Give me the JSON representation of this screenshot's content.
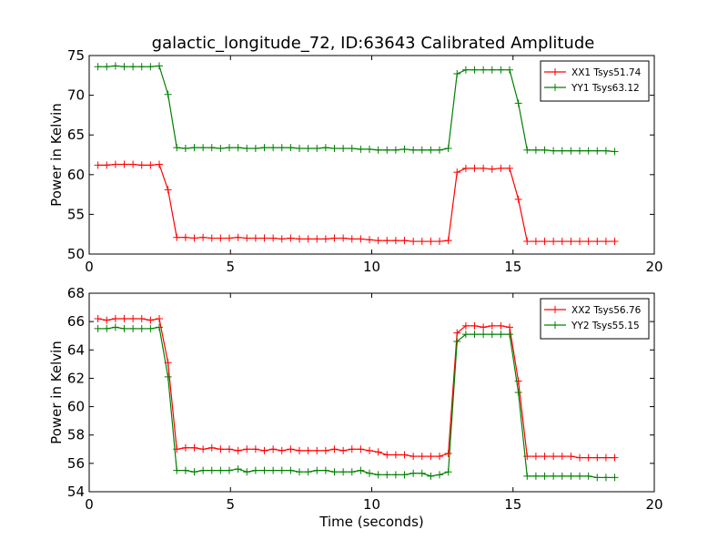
{
  "figure": {
    "title": "galactic_longitude_72, ID:63643 Calibrated Amplitude"
  },
  "chart_data": [
    {
      "type": "line",
      "title": "galactic_longitude_72, ID:63643 Calibrated Amplitude",
      "xlabel": "",
      "ylabel": "Power in Kelvin",
      "xlim": [
        0,
        20
      ],
      "ylim": [
        50,
        75
      ],
      "xticks": [
        0,
        5,
        10,
        15,
        20
      ],
      "yticks": [
        50,
        55,
        60,
        65,
        70,
        75
      ],
      "grid": false,
      "legend_position": "top-right",
      "x": [
        0.31,
        0.62,
        0.93,
        1.24,
        1.55,
        1.86,
        2.17,
        2.48,
        2.79,
        3.1,
        3.41,
        3.72,
        4.03,
        4.34,
        4.65,
        4.96,
        5.27,
        5.58,
        5.89,
        6.2,
        6.51,
        6.82,
        7.13,
        7.44,
        7.75,
        8.06,
        8.37,
        8.68,
        8.99,
        9.3,
        9.61,
        9.92,
        10.23,
        10.54,
        10.85,
        11.16,
        11.47,
        11.78,
        12.09,
        12.4,
        12.71,
        13.02,
        13.33,
        13.64,
        13.95,
        14.26,
        14.57,
        14.88,
        15.19,
        15.5,
        15.81,
        16.12,
        16.43,
        16.74,
        17.05,
        17.36,
        17.67,
        17.98,
        18.29,
        18.6
      ],
      "series": [
        {
          "name": "XX1 Tsys51.74",
          "color": "#ff0000",
          "values": [
            61.2,
            61.2,
            61.3,
            61.3,
            61.3,
            61.2,
            61.2,
            61.3,
            58.1,
            52.1,
            52.1,
            52.0,
            52.1,
            52.0,
            52.0,
            52.0,
            52.1,
            52.0,
            52.0,
            52.0,
            52.0,
            51.9,
            52.0,
            51.9,
            51.9,
            51.9,
            51.9,
            52.0,
            52.0,
            51.9,
            51.9,
            51.8,
            51.7,
            51.7,
            51.7,
            51.7,
            51.6,
            51.6,
            51.6,
            51.6,
            51.7,
            60.3,
            60.8,
            60.8,
            60.8,
            60.7,
            60.8,
            60.8,
            56.9,
            51.6,
            51.6,
            51.6,
            51.6,
            51.6,
            51.6,
            51.6,
            51.6,
            51.6,
            51.6,
            51.6
          ]
        },
        {
          "name": "YY1 Tsys63.12",
          "color": "#008000",
          "values": [
            73.6,
            73.6,
            73.7,
            73.6,
            73.6,
            73.6,
            73.6,
            73.7,
            70.1,
            63.4,
            63.3,
            63.4,
            63.4,
            63.4,
            63.3,
            63.4,
            63.4,
            63.3,
            63.3,
            63.4,
            63.4,
            63.4,
            63.4,
            63.3,
            63.3,
            63.3,
            63.4,
            63.3,
            63.3,
            63.3,
            63.2,
            63.2,
            63.1,
            63.1,
            63.1,
            63.2,
            63.1,
            63.1,
            63.1,
            63.1,
            63.3,
            72.7,
            73.2,
            73.2,
            73.2,
            73.2,
            73.2,
            73.2,
            69.0,
            63.1,
            63.1,
            63.1,
            63.0,
            63.0,
            63.0,
            63.0,
            63.0,
            63.0,
            63.0,
            62.9
          ]
        }
      ]
    },
    {
      "type": "line",
      "title": "",
      "xlabel": "Time (seconds)",
      "ylabel": "Power in Kelvin",
      "xlim": [
        0,
        20
      ],
      "ylim": [
        54,
        68
      ],
      "xticks": [
        0,
        5,
        10,
        15,
        20
      ],
      "yticks": [
        54,
        56,
        58,
        60,
        62,
        64,
        66,
        68
      ],
      "grid": false,
      "legend_position": "top-right",
      "x": [
        0.31,
        0.62,
        0.93,
        1.24,
        1.55,
        1.86,
        2.17,
        2.48,
        2.79,
        3.1,
        3.41,
        3.72,
        4.03,
        4.34,
        4.65,
        4.96,
        5.27,
        5.58,
        5.89,
        6.2,
        6.51,
        6.82,
        7.13,
        7.44,
        7.75,
        8.06,
        8.37,
        8.68,
        8.99,
        9.3,
        9.61,
        9.92,
        10.23,
        10.54,
        10.85,
        11.16,
        11.47,
        11.78,
        12.09,
        12.4,
        12.71,
        13.02,
        13.33,
        13.64,
        13.95,
        14.26,
        14.57,
        14.88,
        15.19,
        15.5,
        15.81,
        16.12,
        16.43,
        16.74,
        17.05,
        17.36,
        17.67,
        17.98,
        18.29,
        18.6
      ],
      "series": [
        {
          "name": "XX2 Tsys56.76",
          "color": "#ff0000",
          "values": [
            66.2,
            66.1,
            66.2,
            66.2,
            66.2,
            66.2,
            66.1,
            66.2,
            63.1,
            57.0,
            57.1,
            57.1,
            57.0,
            57.1,
            57.0,
            57.0,
            56.9,
            57.0,
            57.0,
            56.9,
            57.0,
            56.9,
            57.0,
            56.9,
            56.9,
            56.9,
            56.9,
            57.0,
            56.9,
            57.0,
            57.0,
            56.9,
            56.8,
            56.6,
            56.6,
            56.6,
            56.5,
            56.5,
            56.5,
            56.5,
            56.7,
            65.2,
            65.7,
            65.7,
            65.6,
            65.7,
            65.7,
            65.6,
            61.8,
            56.5,
            56.5,
            56.5,
            56.5,
            56.5,
            56.5,
            56.4,
            56.4,
            56.4,
            56.4,
            56.4
          ]
        },
        {
          "name": "YY2 Tsys55.15",
          "color": "#008000",
          "values": [
            65.5,
            65.5,
            65.6,
            65.5,
            65.5,
            65.5,
            65.5,
            65.6,
            62.1,
            55.5,
            55.5,
            55.4,
            55.5,
            55.5,
            55.5,
            55.5,
            55.6,
            55.4,
            55.5,
            55.5,
            55.5,
            55.5,
            55.5,
            55.4,
            55.4,
            55.5,
            55.5,
            55.4,
            55.4,
            55.4,
            55.5,
            55.3,
            55.2,
            55.2,
            55.2,
            55.2,
            55.3,
            55.3,
            55.1,
            55.2,
            55.4,
            64.6,
            65.1,
            65.1,
            65.1,
            65.1,
            65.1,
            65.1,
            61.0,
            55.1,
            55.1,
            55.1,
            55.1,
            55.1,
            55.1,
            55.1,
            55.1,
            55.0,
            55.0,
            55.0
          ]
        }
      ]
    }
  ]
}
